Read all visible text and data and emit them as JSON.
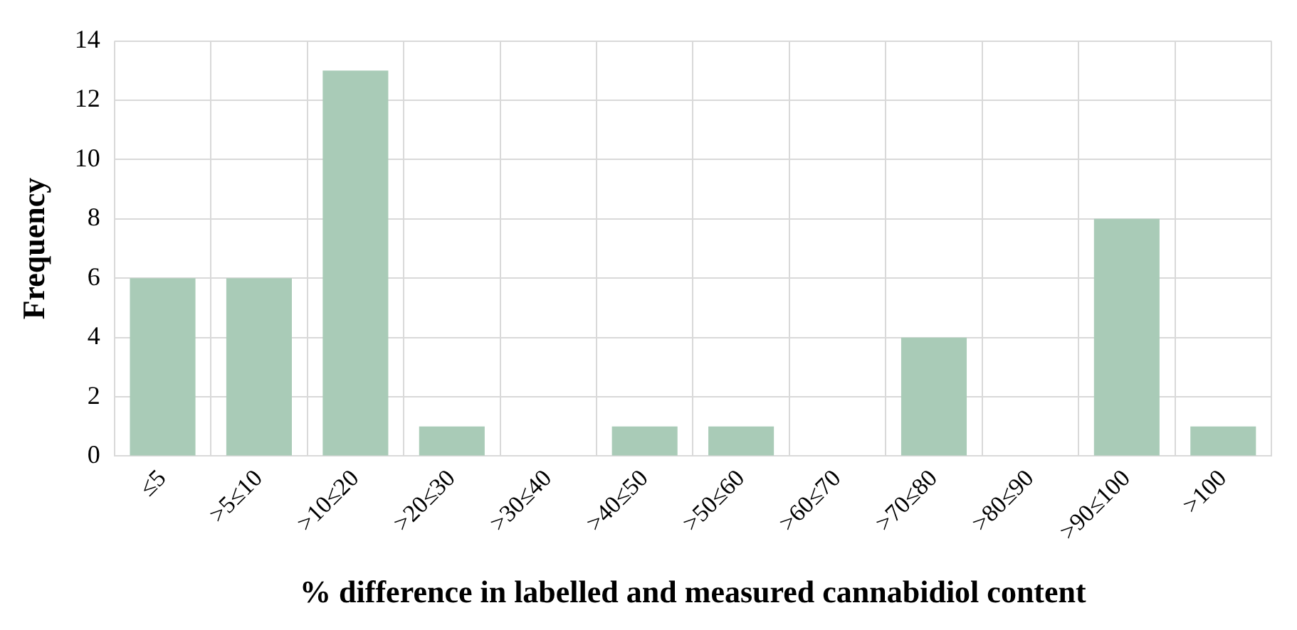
{
  "chart_data": {
    "type": "bar",
    "xlabel": "% difference in labelled and measured cannabidiol content",
    "ylabel": "Frequency",
    "categories": [
      "≤5",
      ">5≤10",
      ">10≤20",
      ">20≤30",
      ">30≤40",
      ">40≤50",
      ">50≤60",
      ">60≤70",
      ">70≤80",
      ">80≤90",
      ">90≤100",
      ">100"
    ],
    "values": [
      6,
      6,
      13,
      1,
      0,
      1,
      1,
      0,
      4,
      0,
      8,
      1
    ],
    "color": "#a9cbb7",
    "ylim": [
      0,
      14
    ],
    "yticks": [
      0,
      2,
      4,
      6,
      8,
      10,
      12,
      14
    ],
    "grid": true,
    "legend": false
  }
}
